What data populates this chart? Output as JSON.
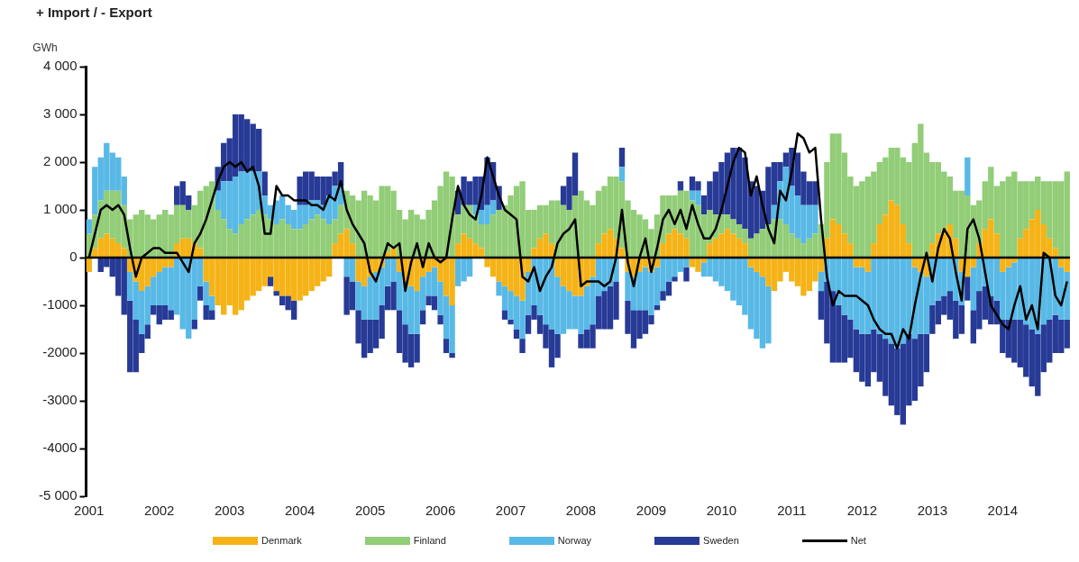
{
  "chart_data": {
    "type": "bar",
    "title": "+ Import / - Export",
    "ylabel": "GWh",
    "stacked": true,
    "legend": "bottom",
    "grid": false,
    "categories": [
      "2001",
      null,
      null,
      null,
      null,
      null,
      null,
      null,
      null,
      null,
      null,
      null,
      "2002",
      null,
      null,
      null,
      null,
      null,
      null,
      null,
      null,
      null,
      null,
      null,
      "2003",
      null,
      null,
      null,
      null,
      null,
      null,
      null,
      null,
      null,
      null,
      null,
      "2004",
      null,
      null,
      null,
      null,
      null,
      null,
      null,
      null,
      null,
      null,
      null,
      "2005",
      null,
      null,
      null,
      null,
      null,
      null,
      null,
      null,
      null,
      null,
      null,
      "2006",
      null,
      null,
      null,
      null,
      null,
      null,
      null,
      null,
      null,
      null,
      null,
      "2007",
      null,
      null,
      null,
      null,
      null,
      null,
      null,
      null,
      null,
      null,
      null,
      "2008",
      null,
      null,
      null,
      null,
      null,
      null,
      null,
      null,
      null,
      null,
      null,
      "2009",
      null,
      null,
      null,
      null,
      null,
      null,
      null,
      null,
      null,
      null,
      null,
      "2010",
      null,
      null,
      null,
      null,
      null,
      null,
      null,
      null,
      null,
      null,
      null,
      "2011",
      null,
      null,
      null,
      null,
      null,
      null,
      null,
      null,
      null,
      null,
      null,
      "2012",
      null,
      null,
      null,
      null,
      null,
      null,
      null,
      null,
      null,
      null,
      null,
      "2013",
      null,
      null,
      null,
      null,
      null,
      null,
      null,
      null,
      null,
      null,
      null,
      "2014",
      null,
      null,
      null,
      null,
      null,
      null,
      null,
      null,
      null,
      null,
      null
    ],
    "ylim": [
      -5000,
      4000
    ],
    "ref_lines": [
      {
        "axis": "y",
        "value": 0,
        "color": "#000000"
      }
    ],
    "yticks": [
      {
        "value": -5000,
        "label": "-5 000"
      },
      {
        "value": -4000,
        "label": "-4000"
      },
      {
        "value": -3000,
        "label": "-3000"
      },
      {
        "value": -2000,
        "label": "-2000"
      },
      {
        "value": -1000,
        "label": "-1000"
      },
      0,
      {
        "value": 1000,
        "label": "1 000"
      },
      {
        "value": 2000,
        "label": "2 000"
      },
      {
        "value": 3000,
        "label": "3 000"
      },
      {
        "value": 4000,
        "label": "4 000"
      }
    ],
    "series": [
      {
        "name": "Denmark",
        "color": "#f5b317",
        "values": [
          -300,
          200,
          400,
          500,
          400,
          300,
          200,
          -300,
          -500,
          -700,
          -600,
          -400,
          -300,
          -200,
          -200,
          300,
          400,
          400,
          300,
          200,
          -500,
          -800,
          -1000,
          -1200,
          -1000,
          -1200,
          -1100,
          -900,
          -800,
          -700,
          -600,
          -400,
          -700,
          -800,
          -800,
          -900,
          -900,
          -800,
          -700,
          -600,
          -500,
          -400,
          300,
          500,
          600,
          300,
          -500,
          -600,
          -400,
          -300,
          -200,
          100,
          200,
          -300,
          -500,
          -600,
          -700,
          -400,
          -300,
          -200,
          -500,
          -800,
          -1000,
          300,
          500,
          400,
          300,
          200,
          -200,
          -400,
          -500,
          -600,
          -700,
          -800,
          -900,
          -300,
          200,
          400,
          500,
          300,
          -400,
          -600,
          -700,
          -800,
          -800,
          -600,
          -400,
          300,
          500,
          600,
          400,
          200,
          -300,
          -400,
          -300,
          -200,
          -300,
          -200,
          300,
          500,
          600,
          500,
          400,
          -200,
          -300,
          -100,
          300,
          400,
          500,
          600,
          500,
          400,
          300,
          -200,
          -300,
          -400,
          -600,
          -700,
          -500,
          -300,
          -500,
          -600,
          -800,
          -700,
          -500,
          -300,
          400,
          800,
          700,
          500,
          300,
          -200,
          -200,
          -300,
          300,
          700,
          900,
          1200,
          1100,
          700,
          300,
          -200,
          -300,
          -400,
          300,
          500,
          600,
          700,
          400,
          -300,
          -400,
          -200,
          300,
          600,
          800,
          500,
          -300,
          -200,
          -100,
          400,
          600,
          800,
          1000,
          700,
          400,
          200,
          -200,
          -300
        ]
      },
      {
        "name": "Finland",
        "color": "#92cd77",
        "values": [
          500,
          700,
          800,
          900,
          1000,
          1100,
          900,
          800,
          900,
          1000,
          900,
          800,
          900,
          1000,
          900,
          800,
          700,
          600,
          800,
          1200,
          1500,
          1600,
          1000,
          800,
          600,
          500,
          700,
          800,
          900,
          1000,
          900,
          800,
          700,
          800,
          700,
          600,
          600,
          700,
          800,
          900,
          800,
          700,
          500,
          600,
          800,
          1000,
          1200,
          1400,
          1300,
          1200,
          1500,
          1400,
          1200,
          1000,
          800,
          1000,
          900,
          800,
          1000,
          1200,
          1500,
          1800,
          1700,
          600,
          600,
          700,
          600,
          500,
          700,
          900,
          1000,
          1100,
          1300,
          1500,
          1600,
          1000,
          800,
          700,
          600,
          900,
          1200,
          1100,
          1000,
          1300,
          1400,
          1200,
          1100,
          1100,
          1000,
          1100,
          1300,
          1400,
          1200,
          1000,
          900,
          800,
          600,
          900,
          1000,
          800,
          700,
          900,
          1000,
          1200,
          1100,
          900,
          700,
          500,
          400,
          300,
          300,
          300,
          300,
          400,
          500,
          600,
          700,
          800,
          800,
          700,
          500,
          400,
          300,
          400,
          500,
          700,
          1600,
          1800,
          1900,
          1700,
          1400,
          1500,
          1600,
          1700,
          1500,
          1300,
          1200,
          1100,
          1200,
          1400,
          1700,
          2400,
          2800,
          2200,
          1700,
          1500,
          1200,
          1000,
          1000,
          1400,
          1300,
          1100,
          900,
          1000,
          1100,
          1000,
          1600,
          1700,
          1800,
          1200,
          1000,
          800,
          700,
          900,
          1200,
          1400,
          1600,
          1800
        ]
      },
      {
        "name": "Norway",
        "color": "#59b9e6",
        "values": [
          300,
          1000,
          900,
          1000,
          800,
          700,
          600,
          -600,
          -800,
          -900,
          -800,
          -600,
          -700,
          -800,
          -900,
          -1200,
          -1500,
          -1700,
          -1300,
          -600,
          -500,
          -300,
          400,
          800,
          1000,
          1200,
          1100,
          1000,
          900,
          800,
          400,
          300,
          500,
          500,
          400,
          400,
          500,
          400,
          400,
          300,
          300,
          600,
          700,
          400,
          -400,
          -500,
          -600,
          -700,
          -900,
          -1000,
          -800,
          -600,
          -500,
          -800,
          -900,
          -1000,
          -900,
          -700,
          -500,
          -600,
          -700,
          -900,
          -1000,
          -600,
          -500,
          -400,
          200,
          300,
          400,
          300,
          -300,
          -500,
          -600,
          -700,
          -800,
          -900,
          -1000,
          -1200,
          -1400,
          -1500,
          -1200,
          -1000,
          -800,
          -700,
          -800,
          -900,
          -1000,
          -800,
          -700,
          -600,
          -500,
          300,
          -600,
          -700,
          -800,
          -900,
          -900,
          -800,
          -700,
          -500,
          -400,
          -300,
          -200,
          200,
          300,
          -300,
          -400,
          -500,
          -600,
          -700,
          -900,
          -1000,
          -1200,
          -1300,
          -1400,
          -1500,
          -1200,
          300,
          800,
          1200,
          1000,
          900,
          800,
          700,
          600,
          -400,
          -500,
          -700,
          -1000,
          -1200,
          -1300,
          -1300,
          -1400,
          -1300,
          -1500,
          -1600,
          -1700,
          -1800,
          -1900,
          -1800,
          -1600,
          -1500,
          -1300,
          -1200,
          -1000,
          -900,
          -800,
          -700,
          -900,
          -700,
          800,
          -900,
          -700,
          -600,
          -800,
          -900,
          -1000,
          -1100,
          -1200,
          -1300,
          -1400,
          -1500,
          -1600,
          -1400,
          -1300,
          -1200,
          -1100,
          -1000
        ]
      },
      {
        "name": "Sweden",
        "color": "#273a96",
        "values": [
          0,
          0,
          -300,
          -200,
          -400,
          -800,
          -1200,
          -1500,
          -1100,
          -400,
          -300,
          -200,
          -400,
          -300,
          -200,
          400,
          500,
          300,
          -200,
          -300,
          -300,
          -200,
          500,
          800,
          900,
          1300,
          1200,
          1100,
          1000,
          900,
          500,
          -200,
          -100,
          -200,
          -300,
          -400,
          600,
          700,
          600,
          500,
          600,
          400,
          300,
          500,
          -800,
          -600,
          -700,
          -800,
          -700,
          -600,
          -700,
          -500,
          -600,
          -900,
          -800,
          -700,
          -600,
          -300,
          -200,
          -300,
          -200,
          -300,
          -100,
          500,
          600,
          500,
          600,
          700,
          1000,
          800,
          500,
          -200,
          -100,
          -200,
          -300,
          -400,
          -300,
          -400,
          -500,
          -800,
          -500,
          400,
          700,
          900,
          -300,
          -400,
          -500,
          -700,
          -800,
          -900,
          -800,
          400,
          -700,
          -800,
          -600,
          -500,
          -200,
          -100,
          -200,
          -300,
          -100,
          200,
          -300,
          300,
          200,
          400,
          600,
          900,
          1100,
          1300,
          1500,
          1600,
          1500,
          1200,
          1000,
          800,
          1200,
          900,
          400,
          300,
          800,
          900,
          700,
          500,
          500,
          -600,
          -1300,
          -1500,
          -1200,
          -1000,
          -800,
          -900,
          -1000,
          -1100,
          -900,
          -1000,
          -1200,
          -1300,
          -1400,
          -1700,
          -1500,
          -1300,
          -1100,
          -800,
          -600,
          -500,
          -400,
          -600,
          -800,
          -600,
          -500,
          -700,
          -800,
          -700,
          -600,
          -500,
          -700,
          -800,
          -900,
          -1000,
          -1100,
          -1200,
          -1300,
          -1000,
          -900,
          -800,
          -700,
          -600
        ]
      },
      {
        "name": "Net",
        "type": "line",
        "color": "#000000",
        "values": [
          0,
          500,
          1000,
          1100,
          1000,
          1100,
          900,
          200,
          -400,
          0,
          100,
          200,
          200,
          100,
          100,
          100,
          -100,
          -300,
          300,
          500,
          800,
          1200,
          1600,
          1900,
          2000,
          1900,
          2000,
          1800,
          1900,
          1500,
          500,
          500,
          1500,
          1300,
          1300,
          1200,
          1200,
          1200,
          1100,
          1100,
          1000,
          1300,
          1200,
          1600,
          1000,
          700,
          500,
          300,
          -300,
          -500,
          -100,
          300,
          200,
          300,
          -700,
          -100,
          300,
          -200,
          300,
          0,
          -100,
          0,
          800,
          1500,
          1100,
          900,
          800,
          1300,
          2100,
          1700,
          1300,
          1000,
          900,
          800,
          -400,
          -500,
          -200,
          -700,
          -400,
          -200,
          300,
          500,
          600,
          800,
          -600,
          -500,
          -500,
          -500,
          -600,
          -500,
          0,
          1000,
          -100,
          -600,
          0,
          400,
          -300,
          200,
          800,
          1000,
          700,
          1000,
          600,
          1100,
          700,
          400,
          400,
          600,
          1000,
          1500,
          2000,
          2300,
          2200,
          1300,
          1700,
          1100,
          600,
          300,
          1400,
          1200,
          1800,
          2600,
          2500,
          2200,
          2300,
          800,
          -400,
          -1000,
          -700,
          -800,
          -800,
          -800,
          -900,
          -1000,
          -1300,
          -1500,
          -1600,
          -1600,
          -1900,
          -1500,
          -1700,
          -1000,
          -400,
          100,
          -500,
          200,
          600,
          400,
          -300,
          -900,
          600,
          800,
          400,
          -300,
          -1000,
          -1200,
          -1400,
          -1500,
          -1000,
          -600,
          -1300,
          -1000,
          -1500,
          100,
          0,
          -800,
          -1000,
          -500
        ]
      }
    ]
  }
}
